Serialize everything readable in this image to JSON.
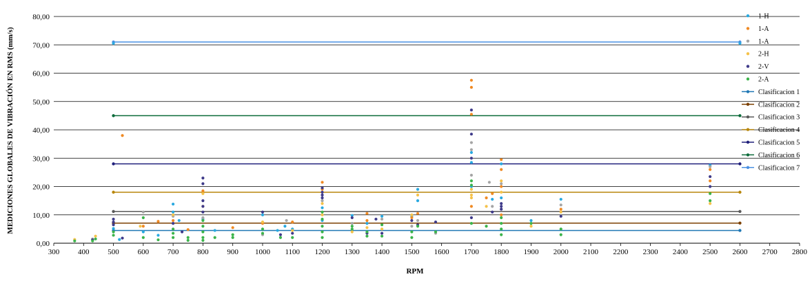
{
  "chart_data": {
    "type": "scatter",
    "title": "",
    "xlabel": "RPM",
    "ylabel": "MEDICIONES GLOBALES DE VIBRACIÓN EN RMS (mm/s)",
    "xlim": [
      300,
      2800
    ],
    "ylim": [
      0,
      80
    ],
    "xticks": [
      "300",
      "400",
      "500",
      "600",
      "700",
      "800",
      "900",
      "1000",
      "1100",
      "1200",
      "1300",
      "1400",
      "1500",
      "1600",
      "1700",
      "1800",
      "1900",
      "2000",
      "2100",
      "2200",
      "2300",
      "2400",
      "2500",
      "2600",
      "2700",
      "2800"
    ],
    "yticks": [
      "0,00",
      "10,00",
      "20,00",
      "30,00",
      "40,00",
      "50,00",
      "60,00",
      "70,00",
      "80,00"
    ],
    "grid": "horizontal",
    "legend_position": "right",
    "series": [
      {
        "name": "1-H",
        "color": "#29a9e0",
        "kind": "points",
        "points": [
          [
            500,
            70.5
          ],
          [
            500,
            5.2
          ],
          [
            520,
            1.3
          ],
          [
            600,
            4.0
          ],
          [
            650,
            2.8
          ],
          [
            700,
            13.8
          ],
          [
            700,
            11.0
          ],
          [
            720,
            8.0
          ],
          [
            800,
            8.5
          ],
          [
            840,
            4.5
          ],
          [
            1000,
            10.0
          ],
          [
            1050,
            4.5
          ],
          [
            1075,
            6.0
          ],
          [
            1100,
            5.0
          ],
          [
            1200,
            12.5
          ],
          [
            1200,
            8.0
          ],
          [
            1300,
            9.8
          ],
          [
            1350,
            7.0
          ],
          [
            1400,
            9.5
          ],
          [
            1500,
            9.5
          ],
          [
            1520,
            19.0
          ],
          [
            1520,
            15.0
          ],
          [
            1700,
            28.5
          ],
          [
            1700,
            32.0
          ],
          [
            1700,
            20.0
          ],
          [
            1770,
            15.5
          ],
          [
            1800,
            28.0
          ],
          [
            1800,
            16.0
          ],
          [
            1900,
            8.0
          ],
          [
            2000,
            15.5
          ],
          [
            2500,
            27.5
          ],
          [
            2600,
            70.5
          ]
        ]
      },
      {
        "name": "1-A",
        "color": "#f08a24",
        "kind": "points",
        "points": [
          [
            530,
            38.0
          ],
          [
            600,
            6.0
          ],
          [
            650,
            7.7
          ],
          [
            700,
            8.0
          ],
          [
            750,
            4.8
          ],
          [
            800,
            18.5
          ],
          [
            800,
            13.0
          ],
          [
            900,
            5.5
          ],
          [
            1000,
            7.0
          ],
          [
            1100,
            7.5
          ],
          [
            1200,
            21.5
          ],
          [
            1200,
            19.0
          ],
          [
            1350,
            10.5
          ],
          [
            1350,
            8.0
          ],
          [
            1500,
            9.0
          ],
          [
            1520,
            10.5
          ],
          [
            1700,
            57.5
          ],
          [
            1700,
            55.0
          ],
          [
            1700,
            45.5
          ],
          [
            1700,
            13.0
          ],
          [
            1750,
            16.0
          ],
          [
            1770,
            17.5
          ],
          [
            1800,
            29.5
          ],
          [
            1800,
            26.0
          ],
          [
            1800,
            20.0
          ],
          [
            1800,
            10.0
          ],
          [
            2000,
            12.0
          ],
          [
            2500,
            26.0
          ],
          [
            2500,
            22.0
          ]
        ]
      },
      {
        "name": "1-A",
        "color": "#a5a5a5",
        "kind": "points",
        "points": [
          [
            430,
            1.5
          ],
          [
            600,
            11.0
          ],
          [
            700,
            9.5
          ],
          [
            800,
            9.0
          ],
          [
            1000,
            3.0
          ],
          [
            1080,
            8.0
          ],
          [
            1200,
            15.0
          ],
          [
            1300,
            7.0
          ],
          [
            1400,
            8.5
          ],
          [
            1500,
            6.0
          ],
          [
            1520,
            8.0
          ],
          [
            1580,
            3.5
          ],
          [
            1700,
            35.5
          ],
          [
            1700,
            33.0
          ],
          [
            1700,
            24.0
          ],
          [
            1760,
            21.5
          ],
          [
            1770,
            13.0
          ],
          [
            1800,
            21.0
          ],
          [
            1800,
            12.0
          ],
          [
            2000,
            13.5
          ],
          [
            2500,
            27.0
          ]
        ]
      },
      {
        "name": "2-H",
        "color": "#f5c24a",
        "kind": "points",
        "points": [
          [
            370,
            1.3
          ],
          [
            440,
            2.5
          ],
          [
            590,
            6.0
          ],
          [
            700,
            10.0
          ],
          [
            800,
            17.5
          ],
          [
            1000,
            7.5
          ],
          [
            1100,
            4.5
          ],
          [
            1200,
            14.0
          ],
          [
            1200,
            10.0
          ],
          [
            1300,
            4.0
          ],
          [
            1350,
            5.5
          ],
          [
            1400,
            5.0
          ],
          [
            1500,
            10.0
          ],
          [
            1520,
            17.0
          ],
          [
            1700,
            19.0
          ],
          [
            1700,
            17.0
          ],
          [
            1700,
            16.0
          ],
          [
            1750,
            13.0
          ],
          [
            1800,
            22.0
          ],
          [
            1800,
            18.0
          ],
          [
            1900,
            6.0
          ],
          [
            2000,
            11.0
          ],
          [
            2500,
            14.0
          ]
        ]
      },
      {
        "name": "2-V",
        "color": "#3f3b8a",
        "kind": "points",
        "points": [
          [
            430,
            1.2
          ],
          [
            500,
            8.5
          ],
          [
            500,
            7.5
          ],
          [
            500,
            6.5
          ],
          [
            530,
            1.8
          ],
          [
            700,
            7.0
          ],
          [
            730,
            4.0
          ],
          [
            800,
            23.0
          ],
          [
            800,
            21.0
          ],
          [
            800,
            15.0
          ],
          [
            800,
            13.0
          ],
          [
            800,
            11.0
          ],
          [
            1000,
            11.0
          ],
          [
            1060,
            3.0
          ],
          [
            1100,
            3.5
          ],
          [
            1200,
            19.5
          ],
          [
            1200,
            18.0
          ],
          [
            1200,
            17.0
          ],
          [
            1200,
            16.0
          ],
          [
            1300,
            9.0
          ],
          [
            1350,
            3.5
          ],
          [
            1380,
            8.5
          ],
          [
            1400,
            3.5
          ],
          [
            1500,
            8.0
          ],
          [
            1520,
            6.5
          ],
          [
            1580,
            7.5
          ],
          [
            1700,
            47.0
          ],
          [
            1700,
            38.5
          ],
          [
            1700,
            30.0
          ],
          [
            1700,
            9.0
          ],
          [
            1770,
            11.0
          ],
          [
            1800,
            14.0
          ],
          [
            1800,
            13.0
          ],
          [
            1800,
            12.0
          ],
          [
            2000,
            9.5
          ],
          [
            2500,
            23.5
          ],
          [
            2500,
            20.0
          ]
        ]
      },
      {
        "name": "2-A",
        "color": "#3cb44b",
        "kind": "points",
        "points": [
          [
            370,
            0.8
          ],
          [
            430,
            0.8
          ],
          [
            440,
            1.5
          ],
          [
            500,
            2.8
          ],
          [
            500,
            4.0
          ],
          [
            600,
            2.0
          ],
          [
            600,
            9.0
          ],
          [
            650,
            1.2
          ],
          [
            700,
            5.0
          ],
          [
            700,
            3.5
          ],
          [
            700,
            2.0
          ],
          [
            750,
            2.0
          ],
          [
            750,
            1.0
          ],
          [
            800,
            8.0
          ],
          [
            800,
            6.0
          ],
          [
            800,
            4.0
          ],
          [
            800,
            2.0
          ],
          [
            800,
            1.0
          ],
          [
            840,
            2.0
          ],
          [
            900,
            3.0
          ],
          [
            900,
            2.0
          ],
          [
            1000,
            5.0
          ],
          [
            1000,
            3.5
          ],
          [
            1060,
            2.0
          ],
          [
            1100,
            2.0
          ],
          [
            1200,
            11.0
          ],
          [
            1200,
            8.5
          ],
          [
            1200,
            6.0
          ],
          [
            1200,
            4.0
          ],
          [
            1200,
            2.0
          ],
          [
            1300,
            6.0
          ],
          [
            1300,
            5.0
          ],
          [
            1350,
            4.0
          ],
          [
            1350,
            2.5
          ],
          [
            1400,
            6.5
          ],
          [
            1400,
            2.5
          ],
          [
            1500,
            4.0
          ],
          [
            1500,
            2.0
          ],
          [
            1520,
            6.0
          ],
          [
            1580,
            4.0
          ],
          [
            1700,
            22.0
          ],
          [
            1700,
            20.5
          ],
          [
            1700,
            7.0
          ],
          [
            1750,
            6.0
          ],
          [
            1800,
            9.0
          ],
          [
            1800,
            7.0
          ],
          [
            1800,
            5.0
          ],
          [
            1800,
            3.0
          ],
          [
            1900,
            7.0
          ],
          [
            2000,
            5.0
          ],
          [
            2000,
            3.0
          ],
          [
            2500,
            17.5
          ],
          [
            2500,
            15.0
          ]
        ]
      },
      {
        "name": "Clasificacion 1",
        "color": "#1f77b4",
        "kind": "line",
        "points": [
          [
            500,
            4.5
          ],
          [
            2600,
            4.5
          ]
        ]
      },
      {
        "name": "Clasificacion 2",
        "color": "#7b3f00",
        "kind": "line",
        "points": [
          [
            500,
            7.1
          ],
          [
            2600,
            7.1
          ]
        ]
      },
      {
        "name": "Clasificacion 3",
        "color": "#595959",
        "kind": "line",
        "points": [
          [
            500,
            11.2
          ],
          [
            2600,
            11.2
          ]
        ]
      },
      {
        "name": "Clasificacion 4",
        "color": "#b8860b",
        "kind": "line",
        "points": [
          [
            500,
            18.0
          ],
          [
            2600,
            18.0
          ]
        ]
      },
      {
        "name": "Clasificacion 5",
        "color": "#1f1f7a",
        "kind": "line",
        "points": [
          [
            500,
            28.0
          ],
          [
            2600,
            28.0
          ]
        ]
      },
      {
        "name": "Clasificacion 6",
        "color": "#0b6b3a",
        "kind": "line",
        "points": [
          [
            500,
            45.0
          ],
          [
            2600,
            45.0
          ]
        ]
      },
      {
        "name": "Clasificacion 7",
        "color": "#4a90e2",
        "kind": "line",
        "points": [
          [
            500,
            71.0
          ],
          [
            2600,
            71.0
          ]
        ]
      }
    ]
  }
}
